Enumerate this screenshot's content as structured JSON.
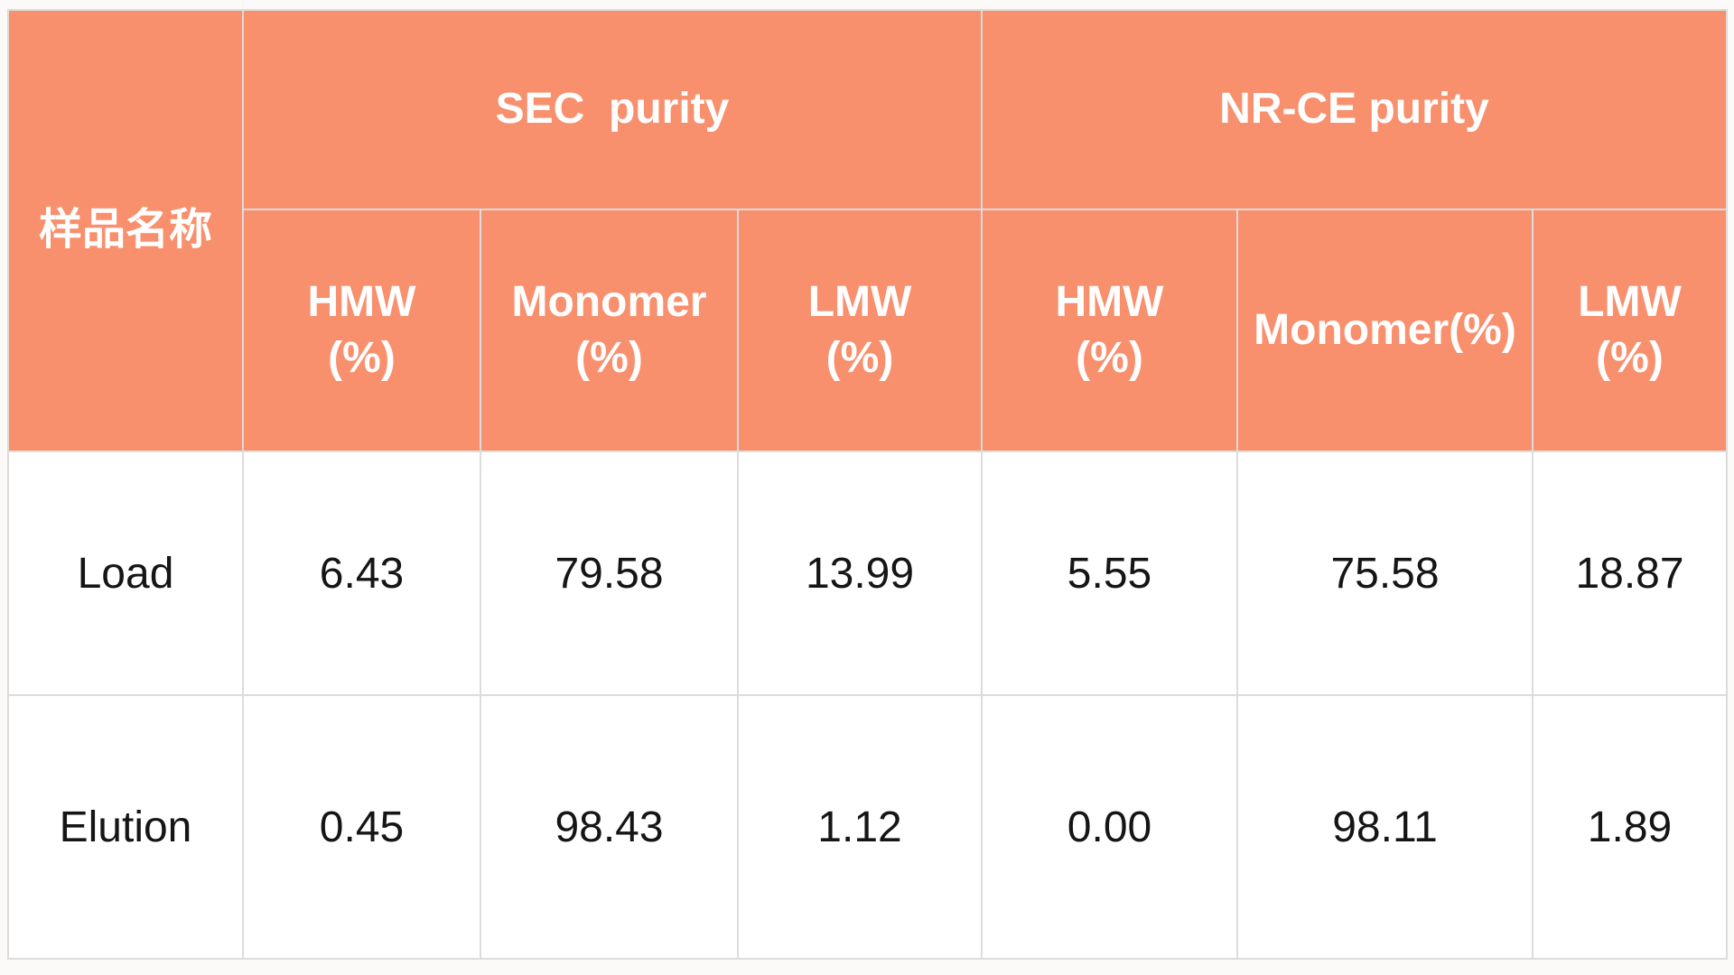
{
  "table": {
    "corner_header": "样品名称",
    "groups": [
      {
        "label": "SEC  purity",
        "columns": [
          "HMW\n(%)",
          "Monomer\n(%)",
          "LMW\n(%)"
        ]
      },
      {
        "label": "NR-CE purity",
        "columns": [
          "HMW\n(%)",
          "Monomer(%)",
          "LMW\n(%)"
        ]
      }
    ],
    "rows": [
      {
        "name": "Load",
        "values": [
          "6.43",
          "79.58",
          "13.99",
          "5.55",
          "75.58",
          "18.87"
        ]
      },
      {
        "name": "Elution",
        "values": [
          "0.45",
          "98.43",
          "1.12",
          "0.00",
          "98.11",
          "1.89"
        ]
      }
    ]
  },
  "colors": {
    "header_bg": "#F8906E",
    "header_text": "#FFFFFF",
    "body_bg": "#FFFFFF",
    "body_text": "#151515",
    "gridline": "#DEDCDA",
    "page_bg": "#FBFAF9"
  },
  "chart_data": {
    "type": "table",
    "title": "",
    "corner_header": "样品名称",
    "column_groups": [
      {
        "label": "SEC  purity",
        "columns": [
          "HMW (%)",
          "Monomer (%)",
          "LMW (%)"
        ]
      },
      {
        "label": "NR-CE purity",
        "columns": [
          "HMW (%)",
          "Monomer(%)",
          "LMW (%)"
        ]
      }
    ],
    "rows": [
      {
        "sample": "Load",
        "values": [
          6.43,
          79.58,
          13.99,
          5.55,
          75.58,
          18.87
        ]
      },
      {
        "sample": "Elution",
        "values": [
          0.45,
          98.43,
          1.12,
          0.0,
          98.11,
          1.89
        ]
      }
    ]
  }
}
